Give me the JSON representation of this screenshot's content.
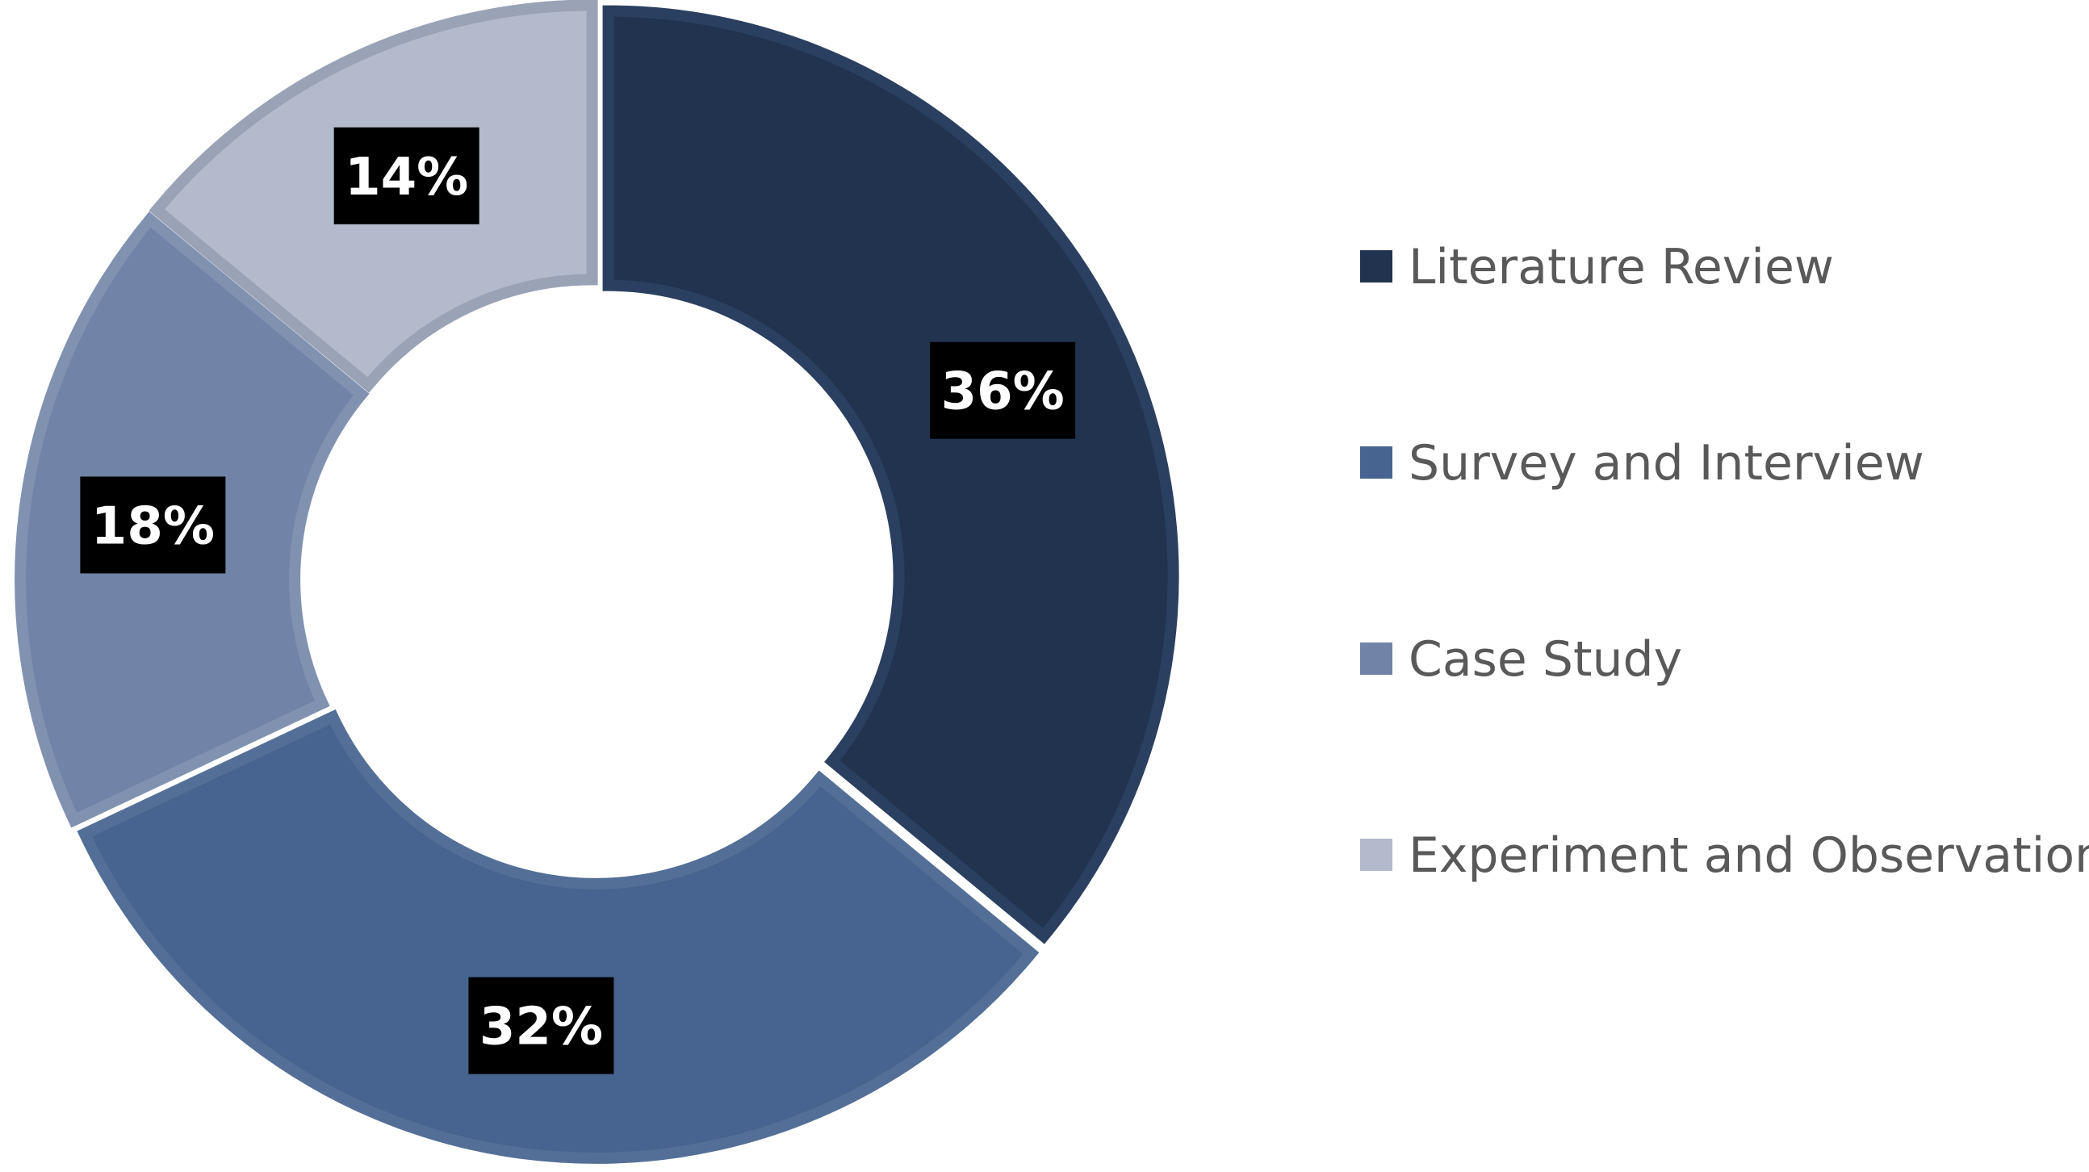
{
  "chart_data": {
    "type": "pie",
    "variant": "donut",
    "title": "",
    "categories": [
      "Literature Review",
      "Survey and Interview",
      "Case Study",
      "Experiment and Observation"
    ],
    "values": [
      36,
      32,
      18,
      14
    ],
    "data_labels": [
      "36%",
      "32%",
      "18%",
      "14%"
    ],
    "colors": [
      "#22334f",
      "#46648f",
      "#7184a8",
      "#b2bacc"
    ],
    "border_colors": [
      "#2b3f60",
      "#546f97",
      "#8192b1",
      "#9aa2b6"
    ],
    "label_box_color": "#000000",
    "label_text_color": "#ffffff",
    "start_angle_deg": 0,
    "direction": "clockwise",
    "legend_position": "right"
  }
}
